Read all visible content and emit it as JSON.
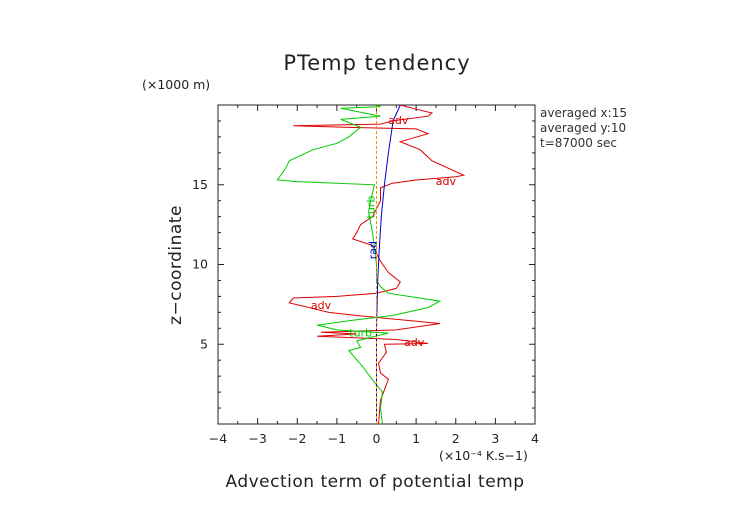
{
  "chart_data": {
    "type": "line",
    "title": "PTemp tendency",
    "xlabel": "Advection term of potential temp",
    "ylabel": "z−coordinate",
    "x_unit": "(×10⁻⁴ K.s−1)",
    "y_unit": "(×1000 m)",
    "xlim": [
      -4,
      4
    ],
    "ylim": [
      0,
      20
    ],
    "x_ticks": [
      -4,
      -3,
      -2,
      -1,
      0,
      1,
      2,
      3,
      4
    ],
    "x_tick_labels": [
      "−4",
      "−3",
      "−2",
      "−1",
      "0",
      "1",
      "2",
      "3",
      "4"
    ],
    "y_ticks": [
      5,
      10,
      15
    ],
    "y_tick_labels": [
      "5",
      "10",
      "15"
    ],
    "annotations": [
      "averaged  x:15",
      "averaged  y:10",
      "t=87000 sec"
    ],
    "series": [
      {
        "label": "adv",
        "color": "#dd0000",
        "points": [
          [
            0.05,
            0.0
          ],
          [
            0.1,
            1.5
          ],
          [
            0.3,
            2.8
          ],
          [
            0.1,
            3.2
          ],
          [
            0.05,
            3.8
          ],
          [
            0.25,
            4.5
          ],
          [
            0.2,
            5.0
          ],
          [
            1.3,
            5.05
          ],
          [
            0.5,
            5.3
          ],
          [
            -1.5,
            5.5
          ],
          [
            -0.5,
            5.65
          ],
          [
            -1.4,
            5.75
          ],
          [
            0.5,
            5.9
          ],
          [
            1.6,
            6.3
          ],
          [
            -0.5,
            6.8
          ],
          [
            -1.2,
            7.0
          ],
          [
            -2.2,
            7.6
          ],
          [
            -2.1,
            7.9
          ],
          [
            -1.0,
            8.0
          ],
          [
            0.0,
            8.2
          ],
          [
            0.5,
            8.5
          ],
          [
            0.6,
            8.9
          ],
          [
            0.3,
            9.5
          ],
          [
            0.1,
            10.2
          ],
          [
            -0.1,
            11.2
          ],
          [
            -0.6,
            11.6
          ],
          [
            -0.5,
            12.0
          ],
          [
            -0.4,
            12.5
          ],
          [
            -0.1,
            13.0
          ],
          [
            0.1,
            14.0
          ],
          [
            0.1,
            14.8
          ],
          [
            0.4,
            15.1
          ],
          [
            1.0,
            15.3
          ],
          [
            2.0,
            15.5
          ],
          [
            2.2,
            15.6
          ],
          [
            1.4,
            16.5
          ],
          [
            1.1,
            17.2
          ],
          [
            0.6,
            17.7
          ],
          [
            1.3,
            18.2
          ],
          [
            1.0,
            18.5
          ],
          [
            -0.8,
            18.6
          ],
          [
            -2.1,
            18.7
          ],
          [
            0.1,
            18.8
          ],
          [
            0.4,
            19.0
          ],
          [
            1.3,
            19.3
          ],
          [
            1.4,
            19.5
          ],
          [
            0.9,
            19.8
          ],
          [
            0.6,
            20.0
          ]
        ]
      },
      {
        "label": "turb",
        "color": "#00cc00",
        "points": [
          [
            0.15,
            0.0
          ],
          [
            0.1,
            1.0
          ],
          [
            0.15,
            2.0
          ],
          [
            -0.05,
            2.6
          ],
          [
            -0.35,
            3.6
          ],
          [
            -0.7,
            4.6
          ],
          [
            -0.4,
            4.8
          ],
          [
            -0.5,
            5.2
          ],
          [
            -0.2,
            5.4
          ],
          [
            0.3,
            5.7
          ],
          [
            -1.0,
            5.9
          ],
          [
            -1.5,
            6.2
          ],
          [
            -0.6,
            6.5
          ],
          [
            0.4,
            6.8
          ],
          [
            1.3,
            7.3
          ],
          [
            1.6,
            7.7
          ],
          [
            0.3,
            8.2
          ],
          [
            0.1,
            8.6
          ],
          [
            0.0,
            9.0
          ],
          [
            0.0,
            10.0
          ],
          [
            -0.1,
            12.0
          ],
          [
            -0.2,
            13.3
          ],
          [
            -0.15,
            14.0
          ],
          [
            -0.05,
            15.0
          ],
          [
            -2.0,
            15.2
          ],
          [
            -2.5,
            15.3
          ],
          [
            -2.3,
            16.0
          ],
          [
            -2.2,
            16.5
          ],
          [
            -1.6,
            17.2
          ],
          [
            -1.0,
            17.6
          ],
          [
            -0.7,
            18.0
          ],
          [
            -0.4,
            18.6
          ],
          [
            -0.9,
            19.1
          ],
          [
            0.1,
            19.3
          ],
          [
            -0.9,
            19.8
          ],
          [
            0.1,
            19.9
          ],
          [
            0.0,
            20.0
          ]
        ]
      },
      {
        "label": "rad",
        "color": "#0000cc",
        "points": [
          [
            0.0,
            0.0
          ],
          [
            0.0,
            6.0
          ],
          [
            0.03,
            9.0
          ],
          [
            0.07,
            11.0
          ],
          [
            0.12,
            13.0
          ],
          [
            0.2,
            15.0
          ],
          [
            0.3,
            17.0
          ],
          [
            0.42,
            19.0
          ],
          [
            0.6,
            20.0
          ]
        ]
      },
      {
        "label": "",
        "color": "#ff8800",
        "points": [
          [
            0.0,
            0.0
          ],
          [
            0.0,
            20.0
          ]
        ]
      }
    ],
    "curve_labels": [
      {
        "text": "adv",
        "series": 0,
        "x": 0.55,
        "y": 18.8
      },
      {
        "text": "adv",
        "series": 0,
        "x": 1.75,
        "y": 15.0
      },
      {
        "text": "adv",
        "series": 0,
        "x": -1.4,
        "y": 7.2
      },
      {
        "text": "adv",
        "series": 0,
        "x": 0.95,
        "y": 4.9
      },
      {
        "text": "turb",
        "series": 1,
        "x": -0.4,
        "y": 5.5
      },
      {
        "text": "turb",
        "series": 1,
        "x": -0.05,
        "y": 13.6
      },
      {
        "text": "rad",
        "series": 2,
        "x": 0.0,
        "y": 10.9
      }
    ]
  }
}
